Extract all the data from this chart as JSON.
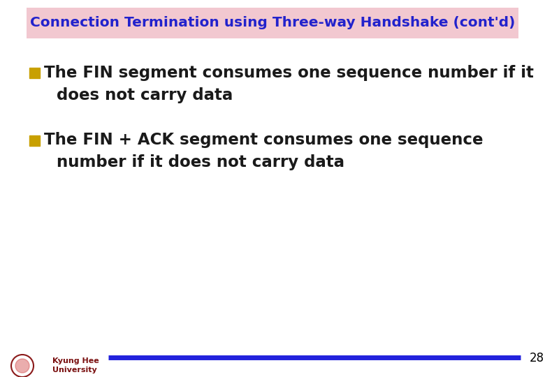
{
  "title": "Connection Termination using Three-way Handshake (cont'd)",
  "title_color": "#2222cc",
  "title_bg_color": "#f2c8d0",
  "title_fontsize": 14.5,
  "bullet1_line1": "The FIN segment consumes one sequence number if it",
  "bullet1_line2": "does not carry data",
  "bullet2_line1": "The FIN + ACK segment consumes one sequence",
  "bullet2_line2": "number if it does not carry data",
  "bullet_color": "#c8a000",
  "text_color": "#1a1a1a",
  "text_fontsize": 16.5,
  "footer_line_color": "#2222dd",
  "footer_text": "28",
  "footer_text_color": "#000000",
  "footer_fontsize": 12,
  "bg_color": "#ffffff",
  "univ_text1": "Kyung Hee",
  "univ_text2": "University",
  "univ_text_color": "#7a1010"
}
